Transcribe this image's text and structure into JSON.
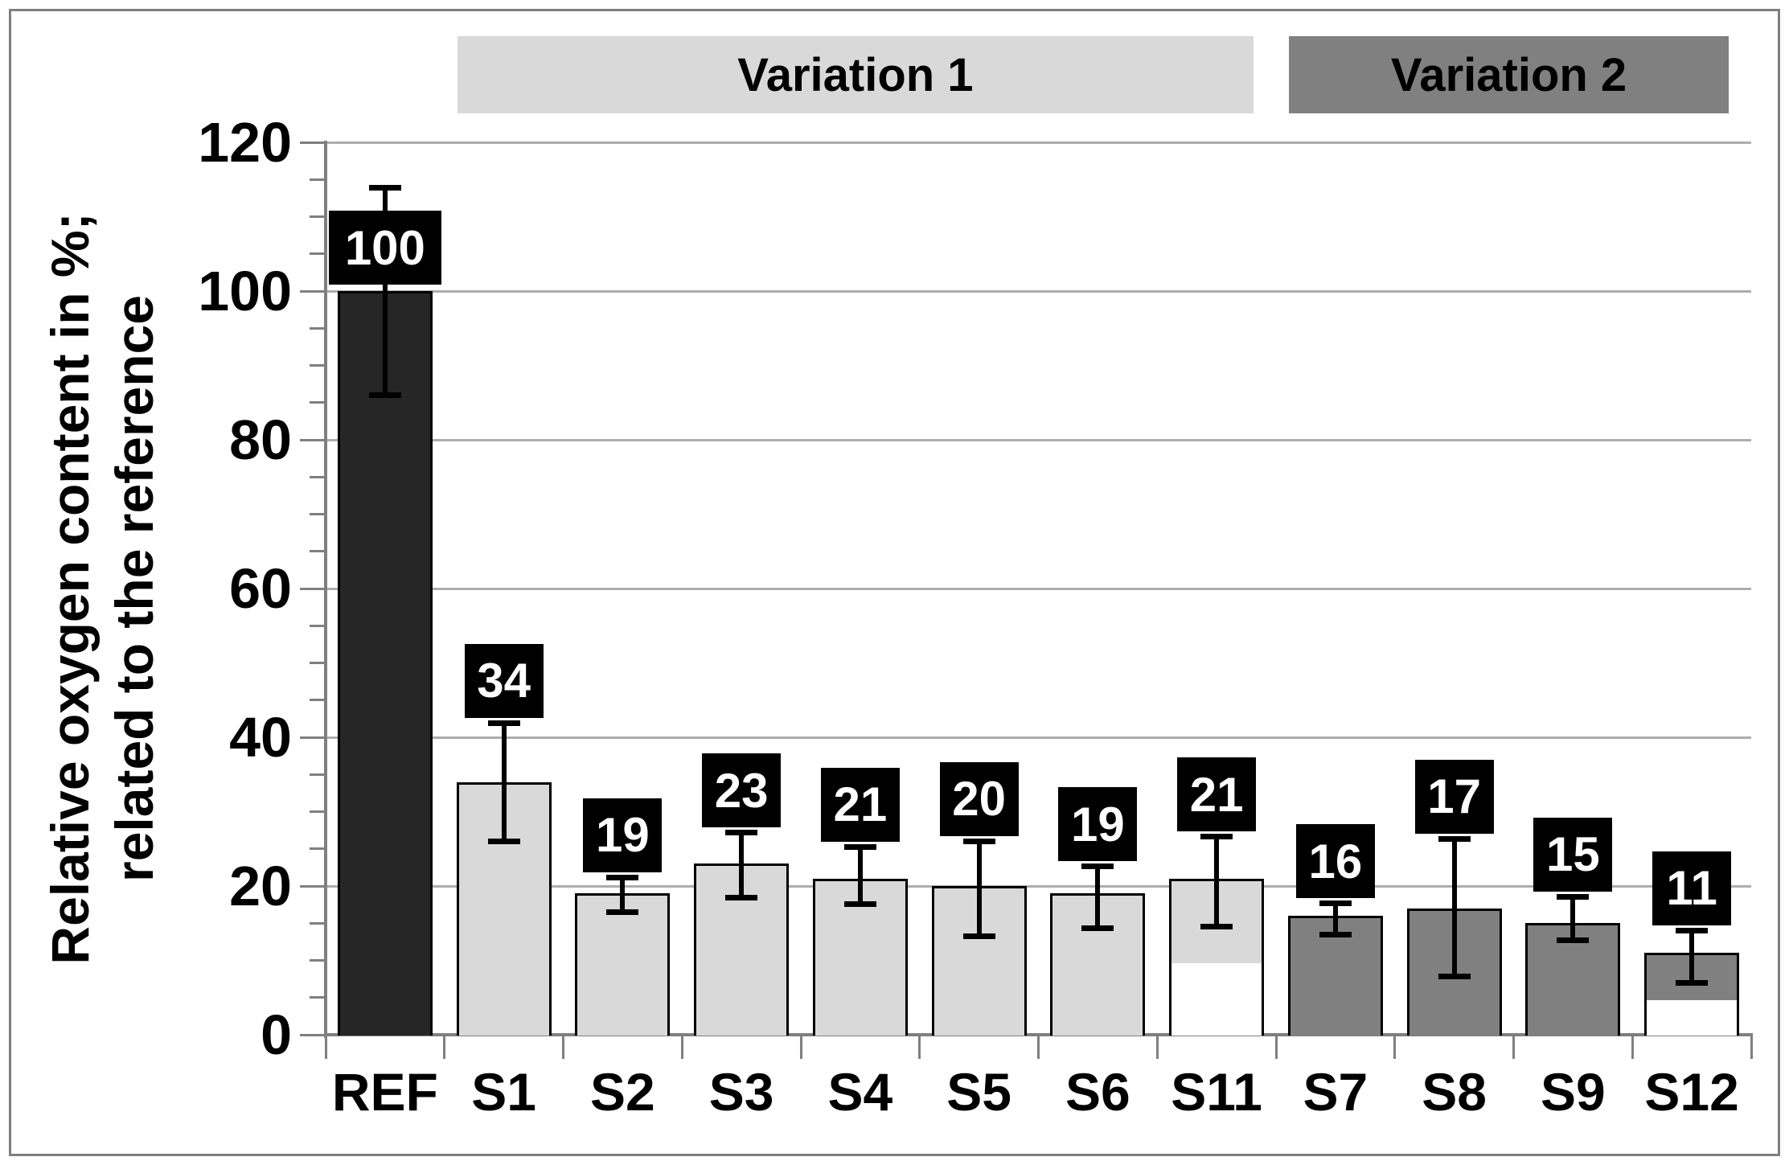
{
  "chart_data": {
    "type": "bar",
    "title": "",
    "ylabel_line1": "Relative oxygen content in %;",
    "ylabel_line2": "related to the reference",
    "xlabel": "",
    "ylim": [
      0,
      120
    ],
    "ytick_interval": 20,
    "yminor_tick_interval": 5,
    "ytick_labels": [
      "0",
      "20",
      "40",
      "60",
      "80",
      "100",
      "120"
    ],
    "grid": "horizontal-major",
    "legend": "none",
    "categories": [
      "REF",
      "S1",
      "S2",
      "S3",
      "S4",
      "S5",
      "S6",
      "S11",
      "S7",
      "S8",
      "S9",
      "S12"
    ],
    "bars": [
      {
        "category": "REF",
        "value": 100,
        "data_label": "100",
        "err_up": 14,
        "err_down": 14,
        "style": "dark",
        "white_base": 0,
        "label_pos": "above_bar"
      },
      {
        "category": "S1",
        "value": 34,
        "data_label": "34",
        "err_up": 8,
        "err_down": 8,
        "style": "light",
        "white_base": 0,
        "label_pos": "above_error"
      },
      {
        "category": "S2",
        "value": 19,
        "data_label": "19",
        "err_up": 2.2,
        "err_down": 2.6,
        "style": "light",
        "white_base": 0,
        "label_pos": "above_error"
      },
      {
        "category": "S3",
        "value": 23,
        "data_label": "23",
        "err_up": 4.2,
        "err_down": 4.6,
        "style": "light",
        "white_base": 0,
        "label_pos": "above_error"
      },
      {
        "category": "S4",
        "value": 21,
        "data_label": "21",
        "err_up": 4.3,
        "err_down": 3.5,
        "style": "light",
        "white_base": 0,
        "label_pos": "above_error"
      },
      {
        "category": "S5",
        "value": 20,
        "data_label": "20",
        "err_up": 6.1,
        "err_down": 6.8,
        "style": "light",
        "white_base": 0,
        "label_pos": "above_error"
      },
      {
        "category": "S6",
        "value": 19,
        "data_label": "19",
        "err_up": 3.7,
        "err_down": 4.7,
        "style": "light",
        "white_base": 0,
        "label_pos": "above_error"
      },
      {
        "category": "S11",
        "value": 21,
        "data_label": "21",
        "err_up": 5.7,
        "err_down": 6.5,
        "style": "light",
        "white_base": 10,
        "label_pos": "above_error"
      },
      {
        "category": "S7",
        "value": 16,
        "data_label": "16",
        "err_up": 1.7,
        "err_down": 2.6,
        "style": "mid",
        "white_base": 0,
        "label_pos": "above_error"
      },
      {
        "category": "S8",
        "value": 17,
        "data_label": "17",
        "err_up": 9.4,
        "err_down": 9.2,
        "style": "mid",
        "white_base": 0,
        "label_pos": "above_error"
      },
      {
        "category": "S9",
        "value": 15,
        "data_label": "15",
        "err_up": 3.6,
        "err_down": 2.4,
        "style": "mid",
        "white_base": 0,
        "label_pos": "above_error"
      },
      {
        "category": "S12",
        "value": 11,
        "data_label": "11",
        "err_up": 3.1,
        "err_down": 4.1,
        "style": "mid",
        "white_base": 5,
        "label_pos": "above_error"
      }
    ],
    "bands": [
      {
        "label": "Variation 1",
        "from_category": "S1",
        "to_category": "S11",
        "fill": "#d9d9d9",
        "text_color": "#000000"
      },
      {
        "label": "Variation 2",
        "from_category": "S7",
        "to_category": "S12",
        "fill": "#808080",
        "text_color": "#000000"
      }
    ],
    "colors": {
      "dark_bar": "#262626",
      "light_bar": "#d9d9d9",
      "mid_bar": "#808080",
      "white_segment": "#ffffff",
      "bar_border": "#000000",
      "error_bar": "#000000",
      "data_label_bg": "#000000",
      "data_label_text": "#ffffff",
      "gridline": "#adadad",
      "axis": "#7f7f7f",
      "frame": "#7f7f7f"
    }
  }
}
